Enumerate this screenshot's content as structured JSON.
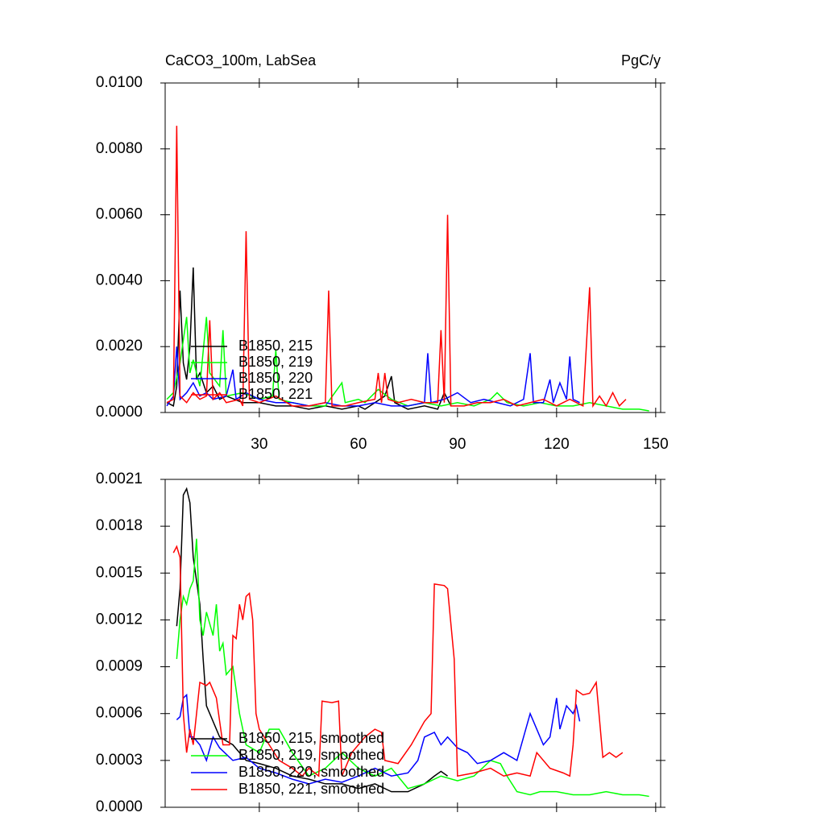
{
  "chart_data": [
    {
      "type": "line",
      "title": "CaCO3_100m, LabSea",
      "unit": "PgC/y",
      "xlim": [
        1.5,
        151.5
      ],
      "xticks": [
        30,
        60,
        90,
        120,
        150
      ],
      "xtick_labels": true,
      "ylim": [
        0,
        0.01
      ],
      "yticks": [
        {
          "value": 0,
          "label": "0.0000"
        },
        {
          "value": 0.002,
          "label": "0.0020"
        },
        {
          "value": 0.004,
          "label": "0.0040"
        },
        {
          "value": 0.006,
          "label": "0.0060"
        },
        {
          "value": 0.008,
          "label": "0.0080"
        },
        {
          "value": 0.01,
          "label": "0.0100"
        }
      ],
      "legend": "lower left",
      "series": [
        {
          "name": "B1850, 215",
          "color": "#000000",
          "x": [
            2,
            4,
            5,
            6,
            7,
            8,
            9,
            10,
            11,
            12,
            14,
            16,
            18,
            20,
            25,
            30,
            35,
            40,
            45,
            50,
            55,
            60,
            62,
            65,
            68,
            70,
            71,
            75,
            80,
            84,
            86,
            88
          ],
          "values": [
            0.0003,
            0.0002,
            0.0008,
            0.0037,
            0.0015,
            0.001,
            0.002,
            0.0044,
            0.001,
            0.0012,
            0.0006,
            0.0008,
            0.0004,
            0.0005,
            0.0003,
            0.0003,
            0.0002,
            0.0002,
            0.0001,
            0.0002,
            0.0001,
            0.0002,
            0.0001,
            0.0003,
            0.0005,
            0.0011,
            0.0003,
            0.0001,
            0.0002,
            0.0001,
            0.0006,
            0.0002
          ]
        },
        {
          "name": "B1850, 219",
          "color": "#00ff00",
          "x": [
            2,
            4,
            6,
            8,
            9,
            10,
            12,
            14,
            15,
            18,
            19,
            20,
            25,
            30,
            34,
            35,
            36,
            40,
            45,
            50,
            55,
            56,
            60,
            62,
            66,
            70,
            75,
            80,
            85,
            90,
            95,
            100,
            102,
            105,
            110,
            115,
            120,
            125,
            130,
            135,
            140,
            145,
            148
          ],
          "values": [
            0.0004,
            0.0006,
            0.0015,
            0.0029,
            0.0012,
            0.0016,
            0.0008,
            0.0029,
            0.0012,
            0.0008,
            0.0025,
            0.0005,
            0.0006,
            0.0004,
            0.0005,
            0.0019,
            0.0004,
            0.0003,
            0.0002,
            0.0002,
            0.0009,
            0.0003,
            0.0004,
            0.0003,
            0.0007,
            0.0004,
            0.0002,
            0.0003,
            0.0002,
            0.0003,
            0.0002,
            0.0004,
            0.0006,
            0.0003,
            0.0002,
            0.0003,
            0.0002,
            0.0002,
            0.0003,
            0.0002,
            0.0001,
            0.0001,
            5e-05
          ]
        },
        {
          "name": "B1850, 220",
          "color": "#0000ff",
          "x": [
            2,
            4,
            5,
            6,
            8,
            10,
            12,
            14,
            16,
            20,
            22,
            23,
            26,
            30,
            35,
            40,
            45,
            50,
            55,
            60,
            65,
            70,
            75,
            80,
            81,
            82,
            86,
            90,
            94,
            98,
            102,
            106,
            110,
            112,
            113,
            116,
            118,
            119,
            121,
            123,
            124,
            125,
            127
          ],
          "values": [
            0.0002,
            0.0005,
            0.002,
            0.0004,
            0.0006,
            0.0009,
            0.0005,
            0.0006,
            0.0004,
            0.0005,
            0.0013,
            0.0004,
            0.0006,
            0.0004,
            0.0003,
            0.0003,
            0.0002,
            0.0003,
            0.0002,
            0.0002,
            0.0003,
            0.0002,
            0.0002,
            0.0003,
            0.0018,
            0.0003,
            0.0004,
            0.0006,
            0.0003,
            0.0004,
            0.0003,
            0.0002,
            0.0004,
            0.0018,
            0.0003,
            0.0003,
            0.001,
            0.0003,
            0.0009,
            0.0004,
            0.0017,
            0.0004,
            0.0003
          ]
        },
        {
          "name": "B1850, 221",
          "color": "#ff0000",
          "x": [
            2,
            4,
            5,
            6,
            8,
            10,
            12,
            14,
            15,
            16,
            18,
            20,
            24,
            25,
            26,
            27,
            30,
            35,
            40,
            45,
            50,
            51,
            52,
            56,
            60,
            65,
            66,
            67,
            68,
            69,
            72,
            76,
            80,
            84,
            85,
            86,
            87,
            88,
            92,
            96,
            100,
            104,
            108,
            112,
            116,
            120,
            124,
            128,
            130,
            131,
            133,
            135,
            137,
            139,
            141
          ],
          "values": [
            0.0003,
            0.0004,
            0.0087,
            0.0005,
            0.0003,
            0.0006,
            0.0004,
            0.0005,
            0.0028,
            0.0004,
            0.0006,
            0.0003,
            0.0004,
            0.0002,
            0.0055,
            0.0004,
            0.0003,
            0.0005,
            0.0002,
            0.0002,
            0.0003,
            0.0037,
            0.0002,
            0.0002,
            0.0003,
            0.0004,
            0.0012,
            0.0003,
            0.0012,
            0.0004,
            0.0003,
            0.0004,
            0.0003,
            0.0003,
            0.0025,
            0.0003,
            0.006,
            0.0002,
            0.0002,
            0.0003,
            0.0003,
            0.0004,
            0.0002,
            0.0003,
            0.0004,
            0.0002,
            0.0004,
            0.0002,
            0.0038,
            0.0002,
            0.0005,
            0.0002,
            0.0006,
            0.0002,
            0.0004
          ]
        }
      ]
    },
    {
      "type": "line",
      "xlim": [
        1.5,
        151.5
      ],
      "xticks": [
        30,
        60,
        90,
        120,
        150
      ],
      "xtick_labels": false,
      "ylim": [
        0,
        0.0021
      ],
      "yticks": [
        {
          "value": 0,
          "label": "0.0000"
        },
        {
          "value": 0.0003,
          "label": "0.0003"
        },
        {
          "value": 0.0006,
          "label": "0.0006"
        },
        {
          "value": 0.0009,
          "label": "0.0009"
        },
        {
          "value": 0.0012,
          "label": "0.0012"
        },
        {
          "value": 0.0015,
          "label": "0.0015"
        },
        {
          "value": 0.0018,
          "label": "0.0018"
        },
        {
          "value": 0.0021,
          "label": "0.0021"
        }
      ],
      "legend": "lower left",
      "series": [
        {
          "name": "B1850, 215, smoothed",
          "color": "#000000",
          "x": [
            5,
            6,
            7,
            8,
            9,
            10,
            11,
            12,
            13,
            14,
            16,
            18,
            22,
            26,
            30,
            35,
            40,
            45,
            50,
            55,
            60,
            65,
            70,
            75,
            80,
            83,
            85,
            87
          ],
          "values": [
            0.00116,
            0.0014,
            0.002,
            0.00204,
            0.00195,
            0.0016,
            0.00145,
            0.0013,
            0.00095,
            0.00065,
            0.00055,
            0.00045,
            0.0004,
            0.0003,
            0.00028,
            0.00025,
            0.0002,
            0.00018,
            0.00015,
            0.00015,
            0.00012,
            0.00015,
            0.0001,
            0.0001,
            0.00015,
            0.0002,
            0.00023,
            0.0002
          ]
        },
        {
          "name": "B1850, 219, smoothed",
          "color": "#00ff00",
          "x": [
            5,
            6,
            7,
            8,
            9,
            10,
            11,
            12,
            13,
            14,
            16,
            17,
            18,
            19,
            20,
            22,
            24,
            26,
            30,
            33,
            36,
            40,
            45,
            50,
            55,
            60,
            65,
            70,
            75,
            80,
            85,
            90,
            95,
            100,
            103,
            105,
            108,
            112,
            115,
            120,
            125,
            130,
            135,
            140,
            145,
            148
          ],
          "values": [
            0.00095,
            0.0012,
            0.00135,
            0.0013,
            0.0014,
            0.00145,
            0.00172,
            0.0012,
            0.0011,
            0.00125,
            0.0011,
            0.0013,
            0.001,
            0.00105,
            0.00085,
            0.0009,
            0.0006,
            0.0004,
            0.00035,
            0.0005,
            0.0005,
            0.00035,
            0.0002,
            0.00025,
            0.00035,
            0.00025,
            0.0002,
            0.00025,
            0.00012,
            0.00015,
            0.0002,
            0.00017,
            0.0002,
            0.0003,
            0.00028,
            0.0002,
            0.0001,
            8e-05,
            0.0001,
            0.0001,
            8e-05,
            8e-05,
            0.0001,
            8e-05,
            8e-05,
            7e-05
          ]
        },
        {
          "name": "B1850, 220, smoothed",
          "color": "#0000ff",
          "x": [
            5,
            6,
            7,
            8,
            9,
            10,
            12,
            14,
            16,
            18,
            22,
            26,
            30,
            35,
            40,
            45,
            50,
            55,
            60,
            65,
            70,
            75,
            78,
            80,
            83,
            85,
            87,
            90,
            93,
            96,
            100,
            104,
            108,
            110,
            112,
            114,
            116,
            118,
            120,
            121,
            123,
            125,
            126,
            127
          ],
          "values": [
            0.00056,
            0.00058,
            0.0007,
            0.00072,
            0.00045,
            0.00045,
            0.0004,
            0.0003,
            0.00045,
            0.00038,
            0.0003,
            0.00032,
            0.00025,
            0.00022,
            0.00018,
            0.00015,
            0.00018,
            0.00016,
            0.0002,
            0.00025,
            0.0002,
            0.00022,
            0.0003,
            0.00045,
            0.00048,
            0.0004,
            0.00045,
            0.00038,
            0.00035,
            0.00028,
            0.0003,
            0.00035,
            0.0003,
            0.00045,
            0.0006,
            0.0005,
            0.0004,
            0.00045,
            0.0007,
            0.0005,
            0.00065,
            0.0006,
            0.00065,
            0.00055
          ]
        },
        {
          "name": "B1850, 221, smoothed",
          "color": "#ff0000",
          "x": [
            4,
            5,
            6,
            7,
            8,
            9,
            10,
            12,
            14,
            15,
            17,
            19,
            21,
            22,
            23,
            24,
            25,
            26,
            27,
            28,
            29,
            30,
            33,
            36,
            40,
            43,
            45,
            48,
            49,
            52,
            54,
            55,
            58,
            62,
            65,
            67,
            68,
            72,
            76,
            80,
            82,
            83,
            86,
            87,
            89,
            90,
            95,
            100,
            104,
            108,
            112,
            114,
            118,
            122,
            124,
            125,
            126,
            128,
            130,
            132,
            134,
            136,
            138,
            140
          ],
          "values": [
            0.00163,
            0.00167,
            0.0016,
            0.0006,
            0.00035,
            0.0005,
            0.0004,
            0.0008,
            0.00078,
            0.0008,
            0.0007,
            0.0004,
            0.0004,
            0.0011,
            0.00108,
            0.0013,
            0.0012,
            0.00135,
            0.00137,
            0.0012,
            0.0006,
            0.0005,
            0.0004,
            0.0003,
            0.00025,
            0.0002,
            0.00025,
            0.0002,
            0.00068,
            0.00067,
            0.00068,
            0.0002,
            0.00035,
            0.00045,
            0.0005,
            0.00048,
            0.0003,
            0.00028,
            0.0004,
            0.00055,
            0.0006,
            0.00143,
            0.00142,
            0.0014,
            0.00095,
            0.0002,
            0.00022,
            0.00025,
            0.0002,
            0.00022,
            0.0002,
            0.00035,
            0.00025,
            0.00022,
            0.0002,
            0.0004,
            0.00075,
            0.00072,
            0.00073,
            0.0008,
            0.00032,
            0.00035,
            0.00032,
            0.00035
          ]
        }
      ]
    }
  ]
}
